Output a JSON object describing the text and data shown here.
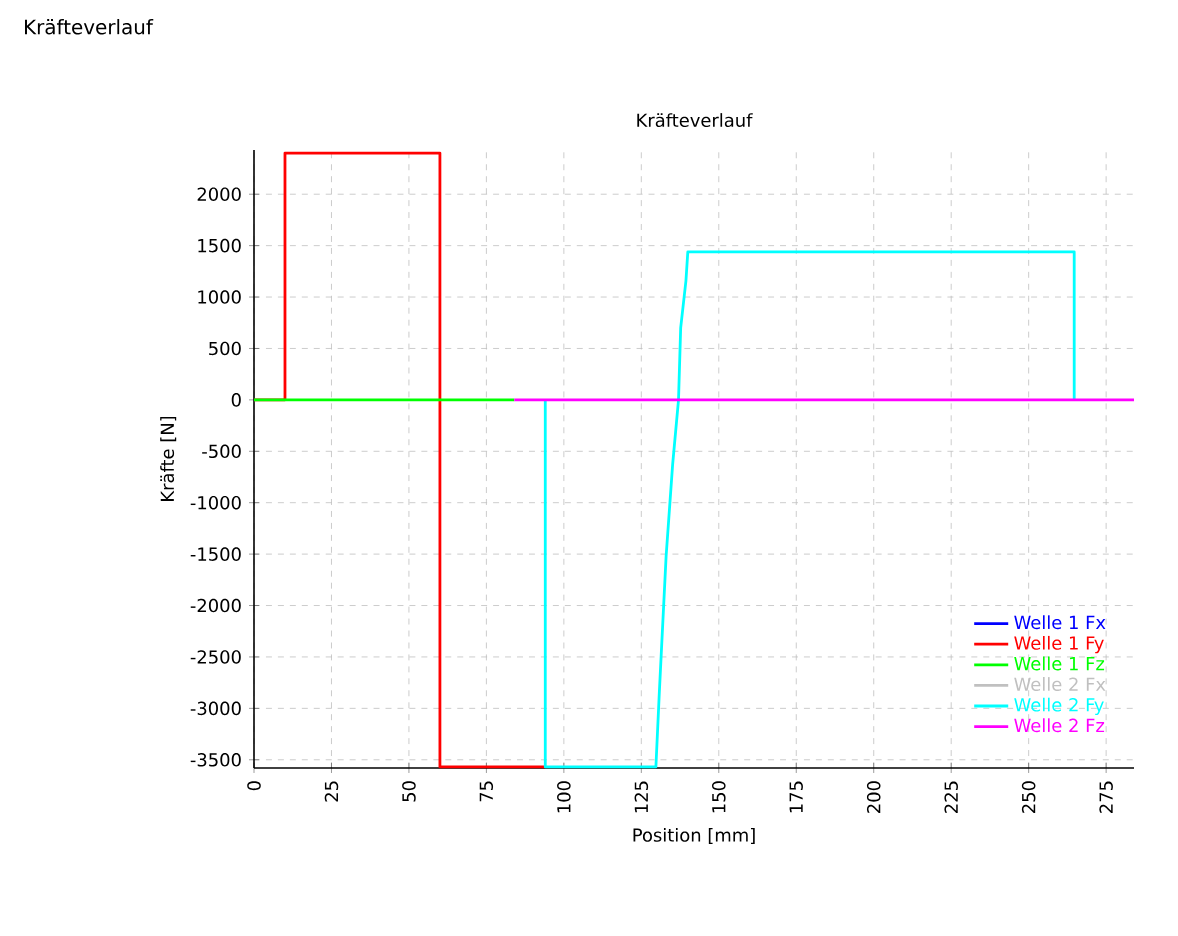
{
  "chart_data": {
    "type": "line",
    "title": "Kräfteverlauf",
    "xlabel": "Position [mm]",
    "ylabel": "Kräfte [N]",
    "annotations": [
      "Kräfteverlauf"
    ],
    "xlim": [
      0,
      284
    ],
    "ylim": [
      -3580,
      2430
    ],
    "xticks": [
      0,
      25,
      50,
      75,
      100,
      125,
      150,
      175,
      200,
      225,
      250,
      275
    ],
    "yticks": [
      -3500,
      -3000,
      -2500,
      -2000,
      -1500,
      -1000,
      -500,
      0,
      500,
      1000,
      1500,
      2000
    ],
    "grid": true,
    "legend": "bottom right",
    "line_style": "solid",
    "marker": "none",
    "series": [
      {
        "name": "Welle 1 Fx",
        "color": "#0000ff"
      },
      {
        "name": "Welle 1 Fy",
        "color": "#ff0000",
        "x": [
          0,
          10,
          10,
          60,
          60,
          94
        ],
        "values": [
          0,
          0,
          2400,
          2400,
          -3570,
          -3570
        ]
      },
      {
        "name": "Welle 1 Fz",
        "color": "#00ff00",
        "x": [
          0,
          84
        ],
        "values": [
          0,
          0
        ]
      },
      {
        "name": "Welle 2 Fx",
        "color": "#c0c0c0"
      },
      {
        "name": "Welle 2 Fy",
        "color": "#00ffff",
        "x": [
          94,
          94,
          129.7,
          130.8,
          133,
          135.1,
          137,
          137.7,
          139.4,
          140,
          264.7,
          264.7
        ],
        "values": [
          0,
          -3570,
          -3570,
          -2850,
          -1520,
          -630,
          0,
          700,
          1160,
          1440,
          1440,
          0
        ]
      },
      {
        "name": "Welle 2 Fz",
        "color": "#ff00ff",
        "x": [
          84,
          284
        ],
        "values": [
          0,
          0
        ]
      }
    ]
  }
}
